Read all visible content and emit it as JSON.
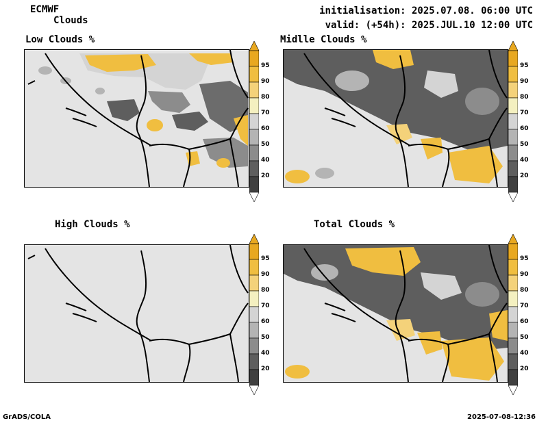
{
  "header": {
    "model": "ECMWF",
    "product": "Clouds",
    "init": "initialisation: 2025.07.08. 06:00 UTC",
    "valid": "valid: (+54h): 2025.JUL.10 12:00 UTC"
  },
  "panels": [
    {
      "title": "Low Clouds %"
    },
    {
      "title": "Midlle Clouds %"
    },
    {
      "title": "High Clouds %"
    },
    {
      "title": "Total Clouds %"
    }
  ],
  "colorbar": {
    "labels": [
      "95",
      "90",
      "80",
      "70",
      "60",
      "50",
      "40",
      "20"
    ],
    "colors": [
      "#e8a820",
      "#f0be40",
      "#f4d27a",
      "#f4f0c0",
      "#d4d4d4",
      "#b4b4b4",
      "#8c8c8c",
      "#5e5e5e",
      "#404040"
    ],
    "end_colors": {
      "top": "#e8a820",
      "bottom": "#ffffff"
    }
  },
  "footer": {
    "left": "GrADS/COLA",
    "right": "2025-07-08-12:36"
  }
}
